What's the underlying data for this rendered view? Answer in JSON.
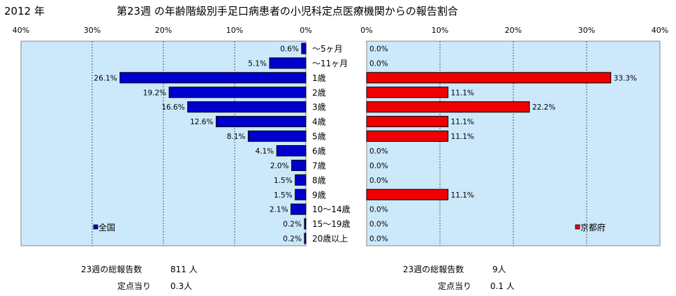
{
  "header": {
    "year": "2012 年",
    "title": "第23週 の年齢階級別手足口病患者の小児科定点医療機関からの報告割合"
  },
  "chart_data": [
    {
      "type": "bar",
      "orientation": "horizontal",
      "direction": "right-to-left",
      "legend": "全国",
      "legend_position": "bottom-left",
      "color": "#0000cc",
      "background": "#cce8fb",
      "xlim": [
        0,
        40
      ],
      "xticks": [
        "40%",
        "30%",
        "20%",
        "10%",
        "0%"
      ],
      "grid": true,
      "categories": [
        "～5ヶ月",
        "～11ヶ月",
        "1歳",
        "2歳",
        "3歳",
        "4歳",
        "5歳",
        "6歳",
        "7歳",
        "8歳",
        "9歳",
        "10～14歳",
        "15～19歳",
        "20歳以上"
      ],
      "values": [
        0.6,
        5.1,
        26.1,
        19.2,
        16.6,
        12.6,
        8.1,
        4.1,
        2.0,
        1.5,
        1.5,
        2.1,
        0.2,
        0.2
      ],
      "labels": [
        "0.6%",
        "5.1%",
        "26.1%",
        "19.2%",
        "16.6%",
        "12.6%",
        "8.1%",
        "4.1%",
        "2.0%",
        "1.5%",
        "1.5%",
        "2.1%",
        "0.2%",
        "0.2%"
      ]
    },
    {
      "type": "bar",
      "orientation": "horizontal",
      "direction": "left-to-right",
      "legend": "京都府",
      "legend_position": "bottom-right",
      "color": "#ee0000",
      "background": "#cce8fb",
      "xlim": [
        0,
        40
      ],
      "xticks": [
        "0%",
        "10%",
        "20%",
        "30%",
        "40%"
      ],
      "grid": true,
      "categories": [
        "～5ヶ月",
        "～11ヶ月",
        "1歳",
        "2歳",
        "3歳",
        "4歳",
        "5歳",
        "6歳",
        "7歳",
        "8歳",
        "9歳",
        "10～14歳",
        "15～19歳",
        "20歳以上"
      ],
      "values": [
        0.0,
        0.0,
        33.3,
        11.1,
        22.2,
        11.1,
        11.1,
        0.0,
        0.0,
        0.0,
        11.1,
        0.0,
        0.0,
        0.0
      ],
      "labels": [
        "0.0%",
        "0.0%",
        "33.3%",
        "11.1%",
        "22.2%",
        "11.1%",
        "11.1%",
        "0.0%",
        "0.0%",
        "0.0%",
        "11.1%",
        "0.0%",
        "0.0%",
        "0.0%"
      ]
    }
  ],
  "footer": {
    "national": {
      "total_label": "23週の総報告数",
      "total_value": "811 人",
      "per_label": "定点当り",
      "per_value": "0.3人"
    },
    "kyoto": {
      "total_label": "23週の総報告数",
      "total_value": "9人",
      "per_label": "定点当り",
      "per_value": "0.1 人"
    }
  }
}
